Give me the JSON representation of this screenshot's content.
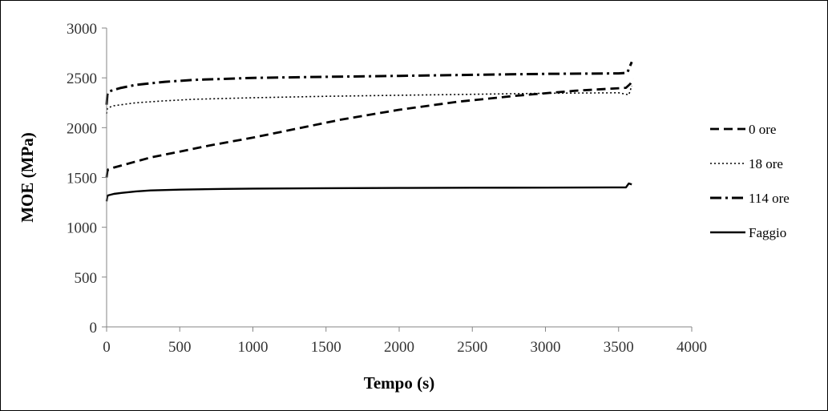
{
  "chart_data": {
    "type": "line",
    "title": "",
    "xlabel": "Tempo (s)",
    "ylabel": "MOE (MPa)",
    "xlim": [
      0,
      4000
    ],
    "ylim": [
      0,
      3000
    ],
    "xticks": [
      0,
      500,
      1000,
      1500,
      2000,
      2500,
      3000,
      3500,
      4000
    ],
    "yticks": [
      0,
      500,
      1000,
      1500,
      2000,
      2500,
      3000
    ],
    "xtick_labels": [
      "0",
      "500",
      "1000",
      "1500",
      "2000",
      "2500",
      "3000",
      "3500",
      "4000"
    ],
    "ytick_labels": [
      "0",
      "500",
      "1000",
      "1500",
      "2000",
      "2500",
      "3000"
    ],
    "grid": false,
    "legend_position": "right",
    "series": [
      {
        "name": "0 ore",
        "style": "dash",
        "color": "#000000",
        "x": [
          0,
          5,
          10,
          50,
          100,
          200,
          300,
          500,
          700,
          1000,
          1300,
          1600,
          2000,
          2400,
          2800,
          3200,
          3550,
          3580,
          3600
        ],
        "y": [
          1500,
          1560,
          1580,
          1600,
          1620,
          1660,
          1700,
          1760,
          1820,
          1900,
          1990,
          2080,
          2180,
          2260,
          2320,
          2370,
          2400,
          2440,
          2490
        ]
      },
      {
        "name": "18 ore",
        "style": "dot",
        "color": "#000000",
        "x": [
          0,
          5,
          10,
          50,
          100,
          200,
          400,
          600,
          1000,
          1500,
          2000,
          2500,
          3000,
          3500,
          3570,
          3590
        ],
        "y": [
          2140,
          2190,
          2200,
          2220,
          2230,
          2250,
          2270,
          2285,
          2300,
          2315,
          2325,
          2335,
          2345,
          2350,
          2330,
          2420
        ]
      },
      {
        "name": "114 ore",
        "style": "dashdot",
        "color": "#000000",
        "x": [
          0,
          5,
          10,
          50,
          100,
          200,
          400,
          600,
          1000,
          1500,
          2000,
          2500,
          3000,
          3500,
          3560,
          3570,
          3590
        ],
        "y": [
          2230,
          2330,
          2360,
          2380,
          2400,
          2430,
          2460,
          2480,
          2500,
          2510,
          2520,
          2530,
          2540,
          2545,
          2550,
          2590,
          2660
        ]
      },
      {
        "name": "Faggio",
        "style": "solid",
        "color": "#000000",
        "x": [
          0,
          5,
          10,
          50,
          100,
          200,
          300,
          500,
          800,
          1000,
          1500,
          2000,
          2500,
          3000,
          3550,
          3570,
          3590
        ],
        "y": [
          1260,
          1310,
          1320,
          1335,
          1345,
          1360,
          1370,
          1378,
          1385,
          1388,
          1392,
          1395,
          1397,
          1398,
          1400,
          1440,
          1430
        ]
      }
    ]
  }
}
